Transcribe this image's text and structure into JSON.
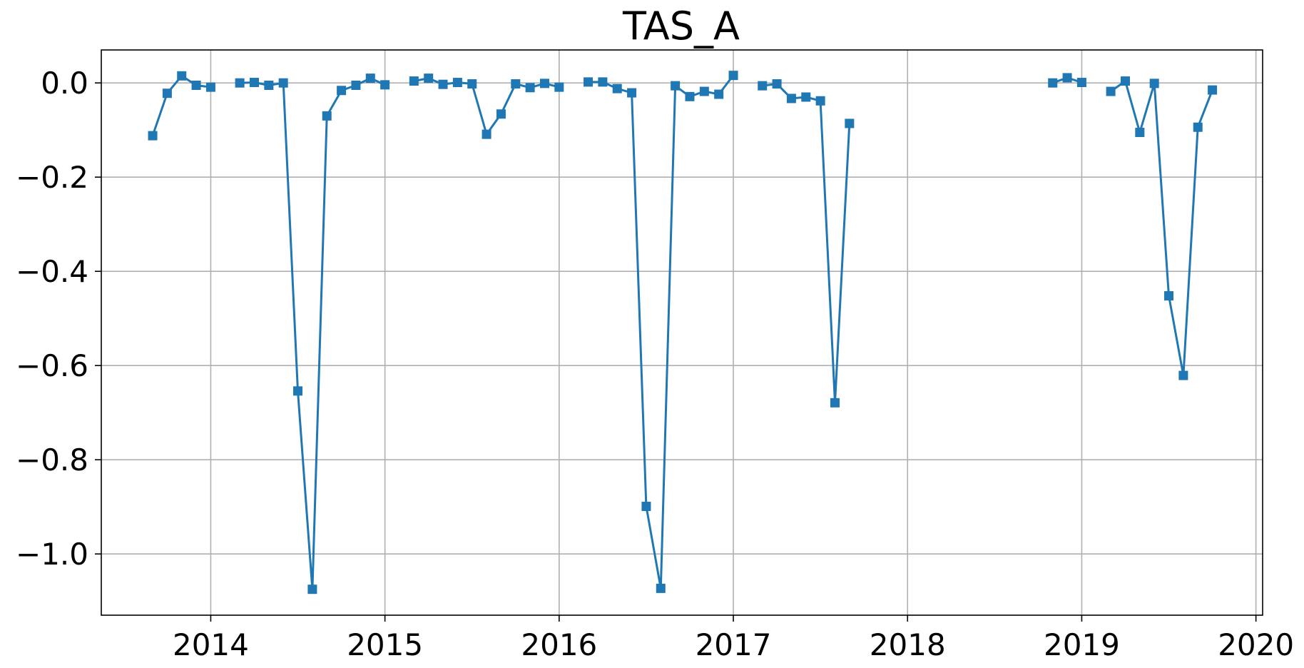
{
  "chart_data": {
    "type": "line",
    "title": "TAS_A",
    "xlabel": "",
    "ylabel": "",
    "xlim": [
      "2013-05-15",
      "2020-01-15"
    ],
    "ylim": [
      -1.13,
      0.07
    ],
    "x_ticks": [
      "2014",
      "2015",
      "2016",
      "2017",
      "2018",
      "2019",
      "2020"
    ],
    "y_ticks": [
      0.0,
      -0.2,
      -0.4,
      -0.6,
      -0.8,
      -1.0
    ],
    "y_tick_labels": [
      "0.0",
      "−0.2",
      "−0.4",
      "−0.6",
      "−0.8",
      "−1.0"
    ],
    "grid": true,
    "marker": "square",
    "color": "#1f77b4",
    "segments": [
      [
        [
          "2013-09",
          -0.112
        ],
        [
          "2013-10",
          -0.022
        ],
        [
          "2013-11",
          0.015
        ],
        [
          "2013-12",
          -0.005
        ],
        [
          "2014-01",
          -0.009
        ]
      ],
      [
        [
          "2014-03",
          0.0
        ],
        [
          "2014-04",
          0.001
        ],
        [
          "2014-05",
          -0.005
        ],
        [
          "2014-06",
          0.0
        ],
        [
          "2014-07",
          -0.654
        ],
        [
          "2014-08",
          -1.075
        ],
        [
          "2014-09",
          -0.07
        ],
        [
          "2014-10",
          -0.016
        ],
        [
          "2014-11",
          -0.005
        ],
        [
          "2014-12",
          0.01
        ],
        [
          "2015-01",
          -0.004
        ]
      ],
      [
        [
          "2015-03",
          0.004
        ],
        [
          "2015-04",
          0.01
        ],
        [
          "2015-05",
          -0.003
        ],
        [
          "2015-06",
          0.001
        ],
        [
          "2015-07",
          -0.002
        ],
        [
          "2015-08",
          -0.109
        ],
        [
          "2015-09",
          -0.066
        ],
        [
          "2015-10",
          -0.002
        ],
        [
          "2015-11",
          -0.01
        ],
        [
          "2015-12",
          -0.001
        ],
        [
          "2016-01",
          -0.009
        ]
      ],
      [
        [
          "2016-03",
          0.002
        ],
        [
          "2016-04",
          0.002
        ],
        [
          "2016-05",
          -0.012
        ],
        [
          "2016-06",
          -0.021
        ],
        [
          "2016-07",
          -0.899
        ],
        [
          "2016-08",
          -1.073
        ],
        [
          "2016-09",
          -0.006
        ],
        [
          "2016-10",
          -0.029
        ],
        [
          "2016-11",
          -0.018
        ],
        [
          "2016-12",
          -0.024
        ],
        [
          "2017-01",
          0.016
        ]
      ],
      [
        [
          "2017-03",
          -0.006
        ],
        [
          "2017-04",
          -0.002
        ],
        [
          "2017-05",
          -0.033
        ],
        [
          "2017-06",
          -0.03
        ],
        [
          "2017-07",
          -0.038
        ],
        [
          "2017-08",
          -0.679
        ],
        [
          "2017-09",
          -0.086
        ]
      ],
      [
        [
          "2018-11",
          0.0
        ],
        [
          "2018-12",
          0.011
        ],
        [
          "2019-01",
          0.001
        ]
      ],
      [
        [
          "2019-03",
          -0.018
        ],
        [
          "2019-04",
          0.004
        ],
        [
          "2019-05",
          -0.105
        ],
        [
          "2019-06",
          -0.001
        ],
        [
          "2019-07",
          -0.452
        ],
        [
          "2019-08",
          -0.621
        ],
        [
          "2019-09",
          -0.094
        ],
        [
          "2019-10",
          -0.015
        ]
      ]
    ]
  }
}
